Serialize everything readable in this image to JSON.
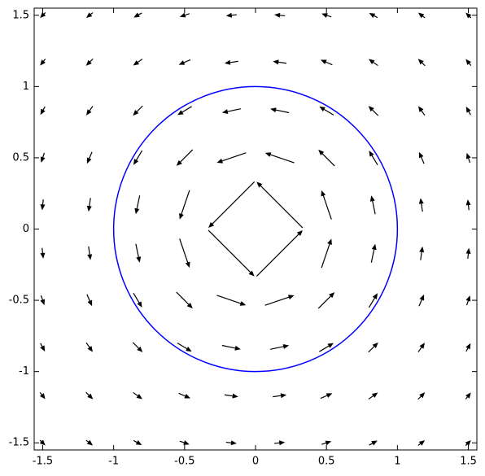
{
  "chart_data": {
    "type": "quiver",
    "x": [
      -1.5,
      -1.17,
      -0.83,
      -0.5,
      -0.17,
      0.17,
      0.5,
      0.83,
      1.17,
      1.5
    ],
    "y": [
      -1.5,
      -1.17,
      -0.83,
      -0.5,
      -0.17,
      0.17,
      0.5,
      0.83,
      1.17,
      1.5
    ],
    "u": [
      [
        0.33,
        0.41,
        0.51,
        0.6,
        0.66,
        0.66,
        0.6,
        0.51,
        0.41,
        0.33
      ],
      [
        0.32,
        0.43,
        0.57,
        0.72,
        0.84,
        0.84,
        0.72,
        0.57,
        0.43,
        0.32
      ],
      [
        0.28,
        0.4,
        0.6,
        0.88,
        1.15,
        1.15,
        0.88,
        0.6,
        0.4,
        0.28
      ],
      [
        0.2,
        0.31,
        0.53,
        1.0,
        1.79,
        1.79,
        1.0,
        0.53,
        0.31,
        0.2
      ],
      [
        0.07,
        0.12,
        0.24,
        0.61,
        2.83,
        2.83,
        0.61,
        0.24,
        0.12,
        0.07
      ],
      [
        -0.07,
        -0.12,
        -0.24,
        -0.61,
        -2.83,
        -2.83,
        -0.61,
        -0.24,
        -0.12,
        -0.07
      ],
      [
        -0.2,
        -0.31,
        -0.53,
        -1.0,
        -1.79,
        -1.79,
        -1.0,
        -0.53,
        -0.31,
        -0.2
      ],
      [
        -0.28,
        -0.4,
        -0.6,
        -0.88,
        -1.15,
        -1.15,
        -0.88,
        -0.6,
        -0.4,
        -0.28
      ],
      [
        -0.32,
        -0.43,
        -0.57,
        -0.72,
        -0.84,
        -0.84,
        -0.72,
        -0.57,
        -0.43,
        -0.32
      ],
      [
        -0.33,
        -0.41,
        -0.51,
        -0.6,
        -0.66,
        -0.66,
        -0.6,
        -0.51,
        -0.41,
        -0.33
      ]
    ],
    "v": [
      [
        -0.33,
        -0.32,
        -0.28,
        -0.2,
        -0.07,
        0.07,
        0.2,
        0.28,
        0.32,
        0.33
      ],
      [
        -0.41,
        -0.43,
        -0.4,
        -0.31,
        -0.12,
        0.12,
        0.31,
        0.4,
        0.43,
        0.41
      ],
      [
        -0.51,
        -0.57,
        -0.6,
        -0.53,
        -0.24,
        0.24,
        0.53,
        0.6,
        0.57,
        0.51
      ],
      [
        -0.6,
        -0.72,
        -0.88,
        -1.0,
        -0.61,
        0.61,
        1.0,
        0.88,
        0.72,
        0.6
      ],
      [
        -0.66,
        -0.84,
        -1.15,
        -1.79,
        -2.83,
        2.83,
        1.79,
        1.15,
        0.84,
        0.66
      ],
      [
        -0.66,
        -0.84,
        -1.15,
        -1.79,
        -2.83,
        2.83,
        1.79,
        1.15,
        0.84,
        0.66
      ],
      [
        -0.6,
        -0.72,
        -0.88,
        -1.0,
        -0.61,
        0.61,
        1.0,
        0.88,
        0.72,
        0.6
      ],
      [
        -0.51,
        -0.57,
        -0.6,
        -0.53,
        -0.24,
        0.24,
        0.53,
        0.6,
        0.57,
        0.51
      ],
      [
        -0.41,
        -0.43,
        -0.4,
        -0.31,
        -0.12,
        0.12,
        0.31,
        0.4,
        0.43,
        0.41
      ],
      [
        -0.33,
        -0.32,
        -0.28,
        -0.2,
        -0.07,
        0.07,
        0.2,
        0.28,
        0.32,
        0.33
      ]
    ],
    "color": "#000000",
    "circle": {
      "center": [
        0,
        0
      ],
      "radius": 1,
      "color": "#0000ff"
    },
    "xlim": [
      -1.56,
      1.56
    ],
    "ylim": [
      -1.55,
      1.55
    ],
    "xticks": [
      -1.5,
      -1,
      -0.5,
      0,
      0.5,
      1,
      1.5
    ],
    "yticks": [
      -1.5,
      -1,
      -0.5,
      0,
      0.5,
      1,
      1.5
    ]
  }
}
